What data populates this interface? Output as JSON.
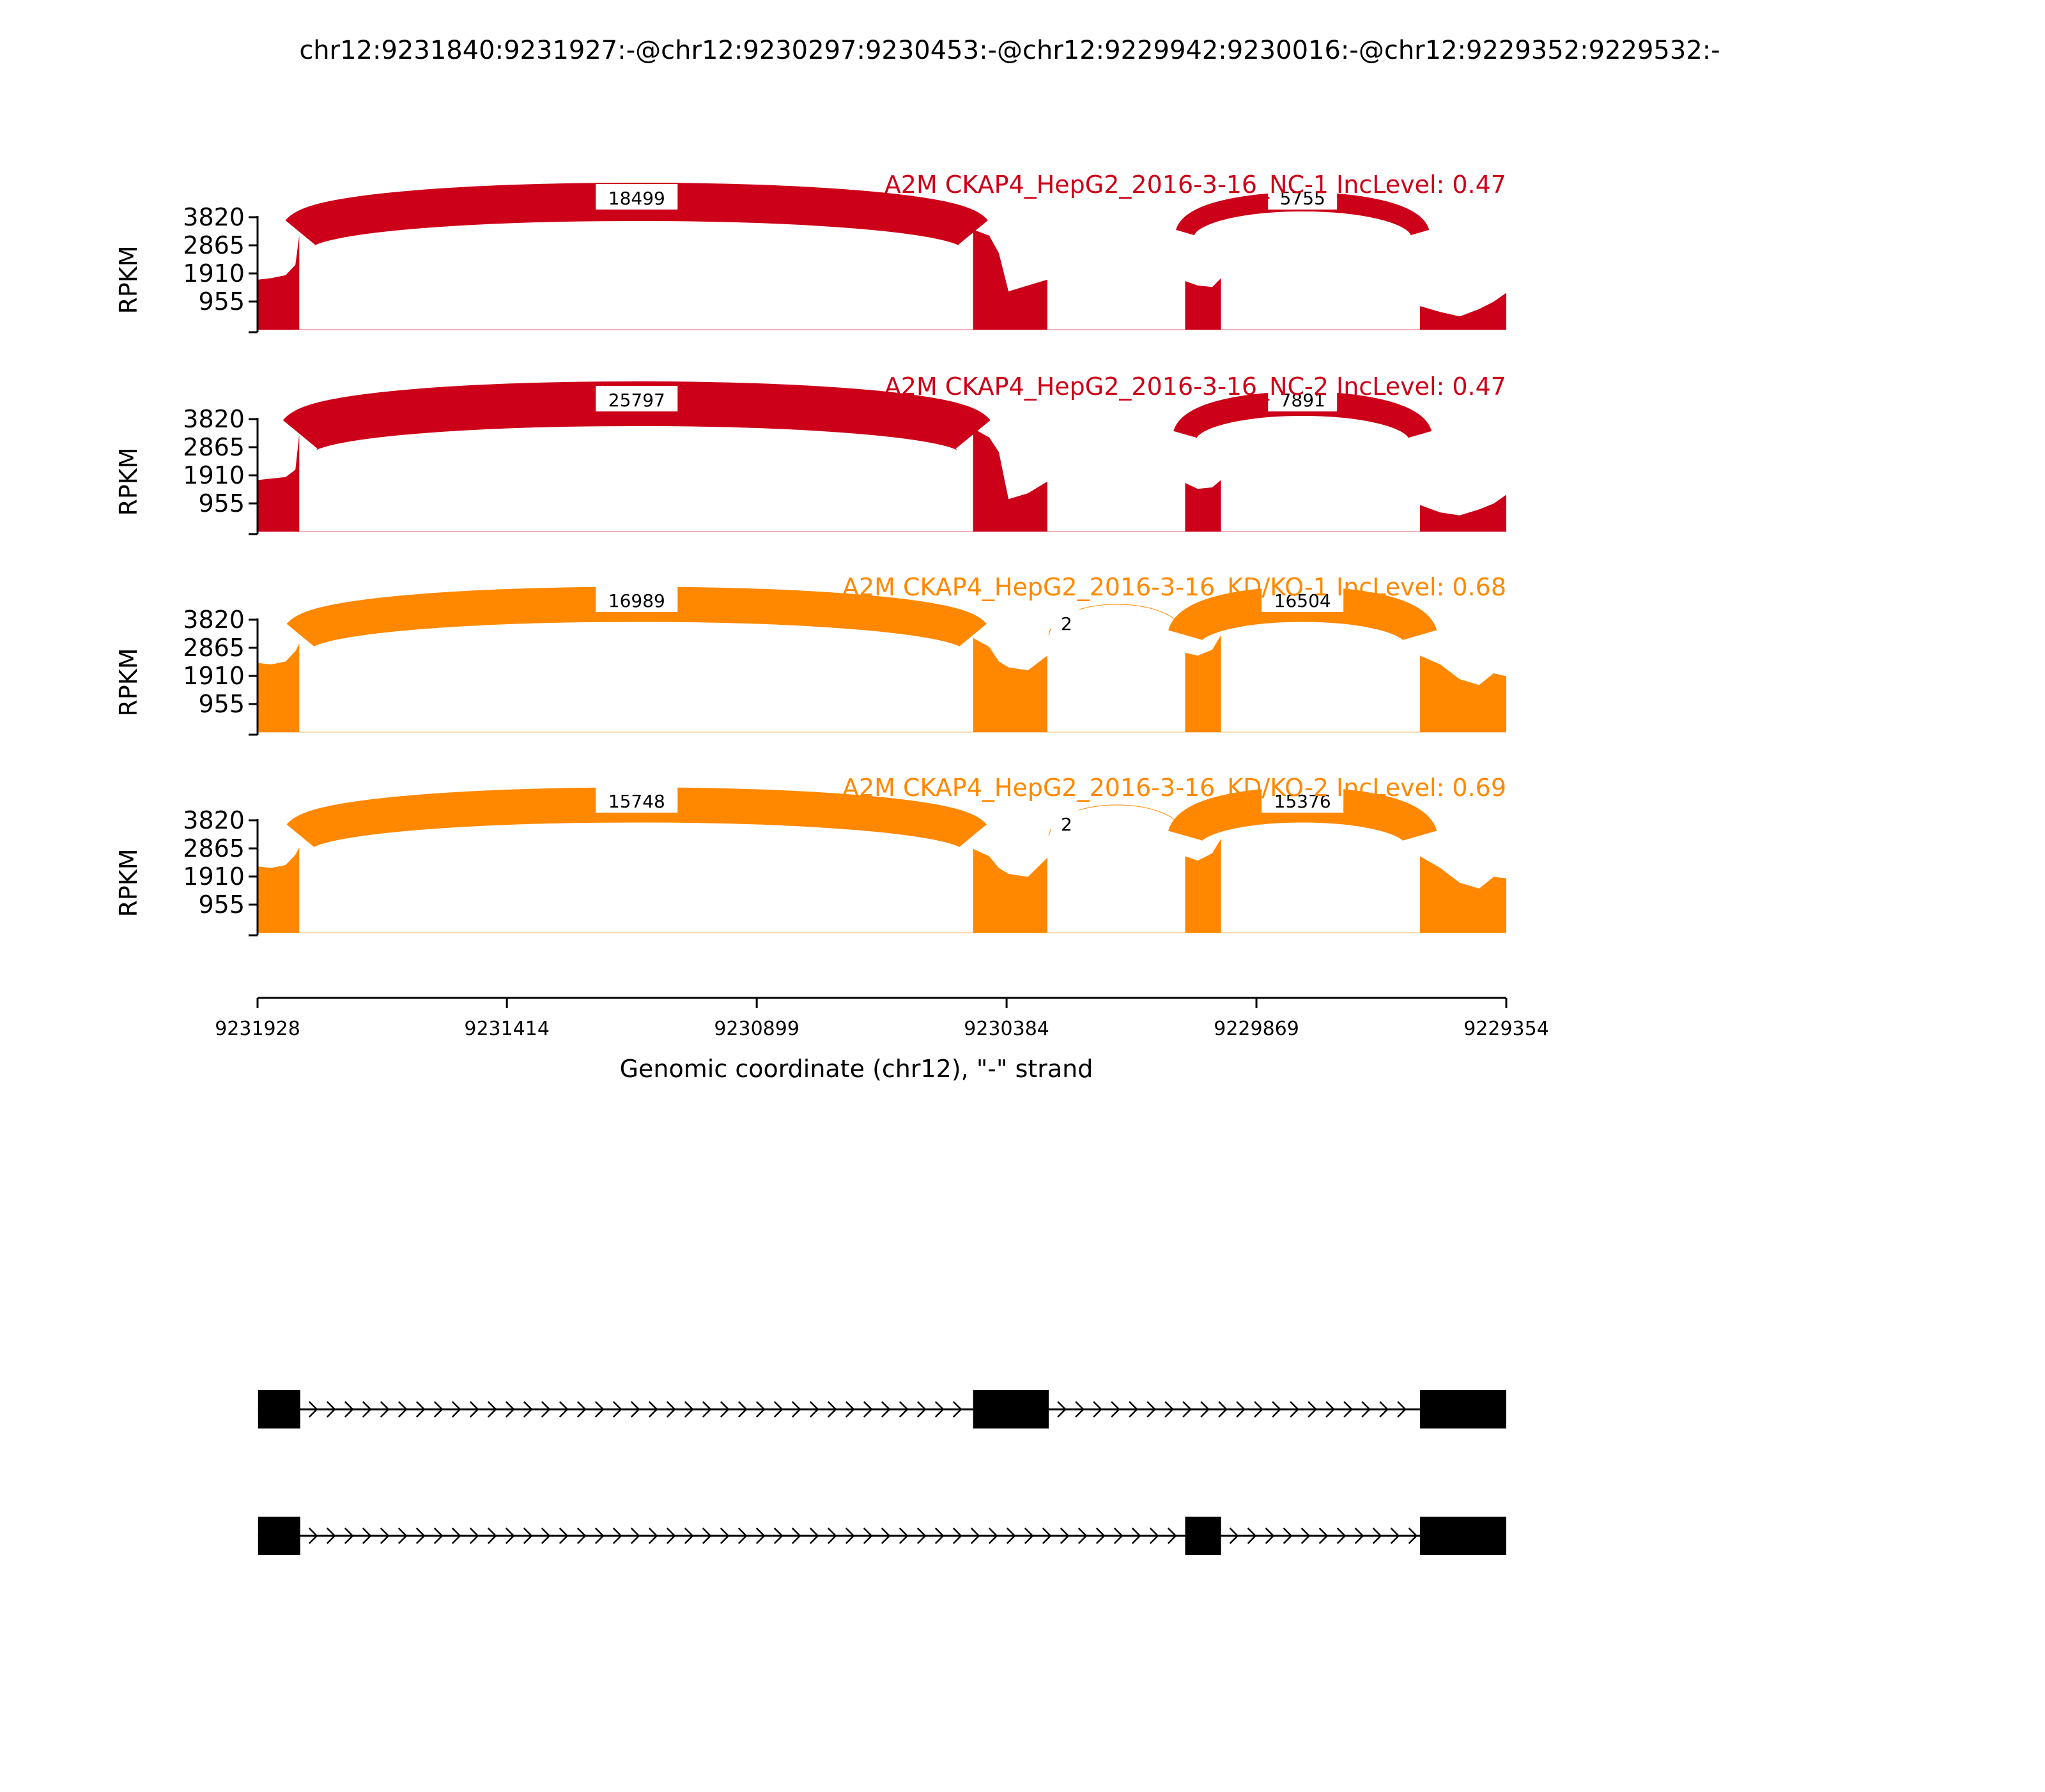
{
  "title": "chr12:9231840:9231927:-@chr12:9230297:9230453:-@chr12:9229942:9230016:-@chr12:9229352:9229532:-",
  "chart_data": {
    "type": "sashimi",
    "ylabel": "RPKM",
    "yticks": [
      955,
      1910,
      2865,
      3820
    ],
    "ylim": [
      0,
      3820
    ],
    "xlabel": "Genomic coordinate (chr12), \"-\" strand",
    "xticks": [
      9231928,
      9231414,
      9230899,
      9230384,
      9229869,
      9229354
    ],
    "xlim": [
      9231928,
      9229354
    ],
    "exons": [
      [
        9231927,
        9231840
      ],
      [
        9230453,
        9230297
      ],
      [
        9230016,
        9229942
      ],
      [
        9229532,
        9229354
      ]
    ],
    "tracks": [
      {
        "label": "A2M CKAP4_HepG2_2016-3-16_NC-1 IncLevel: 0.47",
        "color": "#cc0018",
        "coverage": [
          [
            [
              9231927,
              1700
            ],
            [
              9231900,
              1750
            ],
            [
              9231870,
              1850
            ],
            [
              9231850,
              2200
            ],
            [
              9231842,
              3200
            ]
          ],
          [
            [
              9230453,
              3400
            ],
            [
              9230420,
              3200
            ],
            [
              9230400,
              2600
            ],
            [
              9230380,
              1300
            ],
            [
              9230340,
              1500
            ],
            [
              9230300,
              1700
            ]
          ],
          [
            [
              9230016,
              1650
            ],
            [
              9229990,
              1500
            ],
            [
              9229960,
              1450
            ],
            [
              9229942,
              1750
            ]
          ],
          [
            [
              9229532,
              800
            ],
            [
              9229490,
              600
            ],
            [
              9229450,
              450
            ],
            [
              9229410,
              700
            ],
            [
              9229380,
              950
            ],
            [
              9229354,
              1250
            ]
          ]
        ],
        "junctions": [
          {
            "from": 9231840,
            "to": 9230453,
            "reads": "18499",
            "side": "top",
            "width": 60
          },
          {
            "from": 9230016,
            "to": 9229532,
            "reads": "5755",
            "side": "top",
            "width": 30
          }
        ]
      },
      {
        "label": "A2M CKAP4_HepG2_2016-3-16_NC-2 IncLevel: 0.47",
        "color": "#cc0018",
        "coverage": [
          [
            [
              9231927,
              1750
            ],
            [
              9231900,
              1800
            ],
            [
              9231870,
              1850
            ],
            [
              9231850,
              2100
            ],
            [
              9231842,
              3300
            ]
          ],
          [
            [
              9230453,
              3500
            ],
            [
              9230420,
              3200
            ],
            [
              9230400,
              2700
            ],
            [
              9230380,
              1100
            ],
            [
              9230340,
              1300
            ],
            [
              9230300,
              1700
            ]
          ],
          [
            [
              9230016,
              1650
            ],
            [
              9229990,
              1450
            ],
            [
              9229960,
              1500
            ],
            [
              9229942,
              1750
            ]
          ],
          [
            [
              9229532,
              900
            ],
            [
              9229490,
              650
            ],
            [
              9229450,
              550
            ],
            [
              9229410,
              750
            ],
            [
              9229380,
              950
            ],
            [
              9229354,
              1250
            ]
          ]
        ],
        "junctions": [
          {
            "from": 9231840,
            "to": 9230453,
            "reads": "25797",
            "side": "top",
            "width": 70
          },
          {
            "from": 9230016,
            "to": 9229532,
            "reads": "7891",
            "side": "top",
            "width": 38
          }
        ]
      },
      {
        "label": "A2M CKAP4_HepG2_2016-3-16_KD/KO-1 IncLevel: 0.68",
        "color": "#ff8800",
        "coverage": [
          [
            [
              9231927,
              2350
            ],
            [
              9231900,
              2300
            ],
            [
              9231870,
              2400
            ],
            [
              9231850,
              2750
            ],
            [
              9231842,
              3000
            ]
          ],
          [
            [
              9230453,
              3200
            ],
            [
              9230420,
              2900
            ],
            [
              9230400,
              2400
            ],
            [
              9230380,
              2200
            ],
            [
              9230340,
              2100
            ],
            [
              9230300,
              2600
            ]
          ],
          [
            [
              9230016,
              2700
            ],
            [
              9229990,
              2600
            ],
            [
              9229960,
              2800
            ],
            [
              9229942,
              3300
            ]
          ],
          [
            [
              9229532,
              2600
            ],
            [
              9229490,
              2300
            ],
            [
              9229450,
              1800
            ],
            [
              9229410,
              1600
            ],
            [
              9229380,
              2000
            ],
            [
              9229354,
              1900
            ]
          ]
        ],
        "junctions": [
          {
            "from": 9231840,
            "to": 9230453,
            "reads": "16989",
            "side": "top",
            "width": 55
          },
          {
            "from": 9230297,
            "to": 9230016,
            "reads": "2",
            "side": "top",
            "width": 1
          },
          {
            "from": 9230016,
            "to": 9229532,
            "reads": "16504",
            "side": "top",
            "width": 55
          }
        ]
      },
      {
        "label": "A2M CKAP4_HepG2_2016-3-16_KD/KO-2 IncLevel: 0.69",
        "color": "#ff8800",
        "coverage": [
          [
            [
              9231927,
              2250
            ],
            [
              9231900,
              2200
            ],
            [
              9231870,
              2300
            ],
            [
              9231850,
              2650
            ],
            [
              9231842,
              2900
            ]
          ],
          [
            [
              9230453,
              2850
            ],
            [
              9230420,
              2600
            ],
            [
              9230400,
              2200
            ],
            [
              9230380,
              2000
            ],
            [
              9230340,
              1900
            ],
            [
              9230300,
              2550
            ]
          ],
          [
            [
              9230016,
              2600
            ],
            [
              9229990,
              2450
            ],
            [
              9229960,
              2700
            ],
            [
              9229942,
              3200
            ]
          ],
          [
            [
              9229532,
              2600
            ],
            [
              9229490,
              2200
            ],
            [
              9229450,
              1700
            ],
            [
              9229410,
              1500
            ],
            [
              9229380,
              1900
            ],
            [
              9229354,
              1850
            ]
          ]
        ],
        "junctions": [
          {
            "from": 9231840,
            "to": 9230453,
            "reads": "15748",
            "side": "top",
            "width": 55
          },
          {
            "from": 9230297,
            "to": 9230016,
            "reads": "2",
            "side": "top",
            "width": 1
          },
          {
            "from": 9230016,
            "to": 9229532,
            "reads": "15376",
            "side": "top",
            "width": 55
          }
        ]
      }
    ],
    "isoforms": [
      {
        "exons": [
          [
            9231927,
            9231840
          ],
          [
            9230453,
            9230297
          ],
          [
            9229532,
            9229354
          ]
        ]
      },
      {
        "exons": [
          [
            9231927,
            9231840
          ],
          [
            9230016,
            9229942
          ],
          [
            9229532,
            9229354
          ]
        ]
      }
    ]
  }
}
